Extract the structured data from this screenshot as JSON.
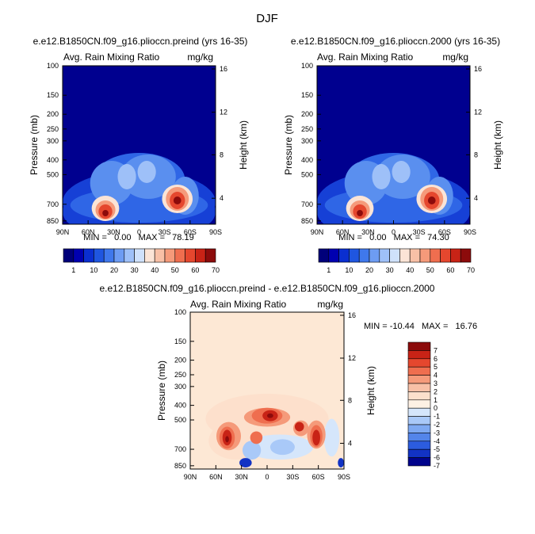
{
  "figure_title": "DJF",
  "chart_data": [
    {
      "type": "heatmap",
      "title": "e.e12.B1850CN.f09_g16.plioccn.preind (yrs 16-35)",
      "subtitle_left": "Avg. Rain Mixing Ratio",
      "subtitle_right": "mg/kg",
      "xlabel": "",
      "ylabel": "Pressure (mb)",
      "y2label": "Height (km)",
      "x_ticks": [
        "90N",
        "60N",
        "30N",
        "0",
        "30S",
        "60S",
        "90S"
      ],
      "y_ticks": [
        "100",
        "150",
        "200",
        "250",
        "300",
        "400",
        "500",
        "700",
        "850"
      ],
      "y2_ticks": [
        "16",
        "12",
        "8",
        "4"
      ],
      "stats": "MIN =   0.00   MAX =   78.19",
      "min": 0.0,
      "max": 78.19,
      "colorbar_labels": [
        "1",
        "10",
        "20",
        "30",
        "40",
        "50",
        "60",
        "70"
      ],
      "features": [
        {
          "lat": -40,
          "p": 720,
          "value": 72
        },
        {
          "lat": 35,
          "p": 710,
          "value": 78
        },
        {
          "lat": 0,
          "p": 520,
          "value": 18
        }
      ]
    },
    {
      "type": "heatmap",
      "title": "e.e12.B1850CN.f09_g16.plioccn.2000 (yrs 16-35)",
      "subtitle_left": "Avg. Rain Mixing Ratio",
      "subtitle_right": "mg/kg",
      "xlabel": "",
      "ylabel": "Pressure (mb)",
      "y2label": "Height (km)",
      "x_ticks": [
        "90N",
        "60N",
        "30N",
        "0",
        "30S",
        "60S",
        "90S"
      ],
      "y_ticks": [
        "100",
        "150",
        "200",
        "250",
        "300",
        "400",
        "500",
        "700",
        "850"
      ],
      "y2_ticks": [
        "16",
        "12",
        "8",
        "4"
      ],
      "stats": "MIN =   0.00   MAX =   74.30",
      "min": 0.0,
      "max": 74.3,
      "colorbar_labels": [
        "1",
        "10",
        "20",
        "30",
        "40",
        "50",
        "60",
        "70"
      ],
      "features": [
        {
          "lat": -40,
          "p": 720,
          "value": 68
        },
        {
          "lat": 35,
          "p": 710,
          "value": 74
        },
        {
          "lat": 0,
          "p": 520,
          "value": 16
        }
      ]
    },
    {
      "type": "heatmap",
      "title": "e.e12.B1850CN.f09_g16.plioccn.preind - e.e12.B1850CN.f09_g16.plioccn.2000",
      "subtitle_left": "Avg. Rain Mixing Ratio",
      "subtitle_right": "mg/kg",
      "xlabel": "",
      "ylabel": "Pressure (mb)",
      "y2label": "Height (km)",
      "x_ticks": [
        "90N",
        "60N",
        "30N",
        "0",
        "30S",
        "60S",
        "90S"
      ],
      "y_ticks": [
        "100",
        "150",
        "200",
        "250",
        "300",
        "400",
        "500",
        "700",
        "850"
      ],
      "y2_ticks": [
        "16",
        "12",
        "8",
        "4"
      ],
      "stats": "MIN = -10.44   MAX =   16.76",
      "min": -10.44,
      "max": 16.76,
      "colorbar_labels": [
        "7",
        "6",
        "5",
        "4",
        "3",
        "2",
        "1",
        "0",
        "-1",
        "-2",
        "-3",
        "-4",
        "-5",
        "-6",
        "-7"
      ],
      "features": [
        {
          "lat": 0,
          "p": 450,
          "value": 8
        },
        {
          "lat": -45,
          "p": 600,
          "value": 7
        },
        {
          "lat": 50,
          "p": 600,
          "value": 6
        },
        {
          "lat": -25,
          "p": 750,
          "value": -4
        }
      ]
    }
  ],
  "colors": {
    "background_blue": "#00008f",
    "colorbar_seq": [
      "#00007a",
      "#0000b0",
      "#0a2fd0",
      "#1f56e0",
      "#3f78ec",
      "#6d9cf3",
      "#9ec0f8",
      "#cfe1fb",
      "#fbe4d6",
      "#f8c0a6",
      "#f59a7a",
      "#ef6e4f",
      "#e5472e",
      "#c82316",
      "#8c0b0b"
    ],
    "colorbar_diff": [
      "#8c0b0b",
      "#c82316",
      "#e5472e",
      "#ef6e4f",
      "#f59a7a",
      "#f8c0a6",
      "#fce0cc",
      "#fdf1e4",
      "#d5e6fb",
      "#a9c9f8",
      "#7ea9f2",
      "#5385ea",
      "#2c5cdf",
      "#1233c4",
      "#00038c"
    ],
    "diff_background": "#fde8d5"
  }
}
